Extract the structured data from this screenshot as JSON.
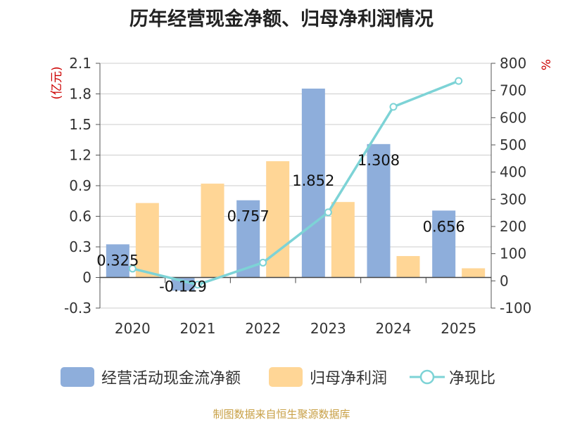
{
  "chart_data": {
    "type": "bar",
    "title": "历年经营现金净额、归母净利润情况",
    "categories": [
      "2020",
      "2021",
      "2022",
      "2023",
      "2024",
      "2025"
    ],
    "series": [
      {
        "name": "经营活动现金流净额",
        "type": "bar",
        "axis": "left",
        "color": "#8eaedb",
        "values": [
          0.325,
          -0.129,
          0.757,
          1.852,
          1.308,
          0.656
        ]
      },
      {
        "name": "归母净利润",
        "type": "bar",
        "axis": "left",
        "color": "#ffd696",
        "values": [
          0.73,
          0.92,
          1.14,
          0.74,
          0.21,
          0.09
        ]
      },
      {
        "name": "净现比",
        "type": "line",
        "axis": "right",
        "color": "#7dd3d6",
        "values": [
          45,
          -14,
          67,
          252,
          640,
          735
        ]
      }
    ],
    "data_labels": [
      "0.325",
      "-0.129",
      "0.757",
      "1.852",
      "1.308",
      "0.656"
    ],
    "left_axis": {
      "label": "(亿元)",
      "ylim": [
        -0.3,
        2.1
      ],
      "ticks": [
        "2.1",
        "1.8",
        "1.5",
        "1.2",
        "0.9",
        "0.6",
        "0.3",
        "0",
        "-0.3"
      ]
    },
    "right_axis": {
      "label": "%",
      "ylim": [
        -100,
        800
      ],
      "ticks": [
        "800",
        "700",
        "600",
        "500",
        "400",
        "300",
        "200",
        "100",
        "0",
        "-100"
      ]
    },
    "grid": true,
    "legend_position": "bottom"
  },
  "legend": {
    "items": [
      "经营活动现金流净额",
      "归母净利润",
      "净现比"
    ]
  },
  "source": "制图数据来自恒生聚源数据库"
}
